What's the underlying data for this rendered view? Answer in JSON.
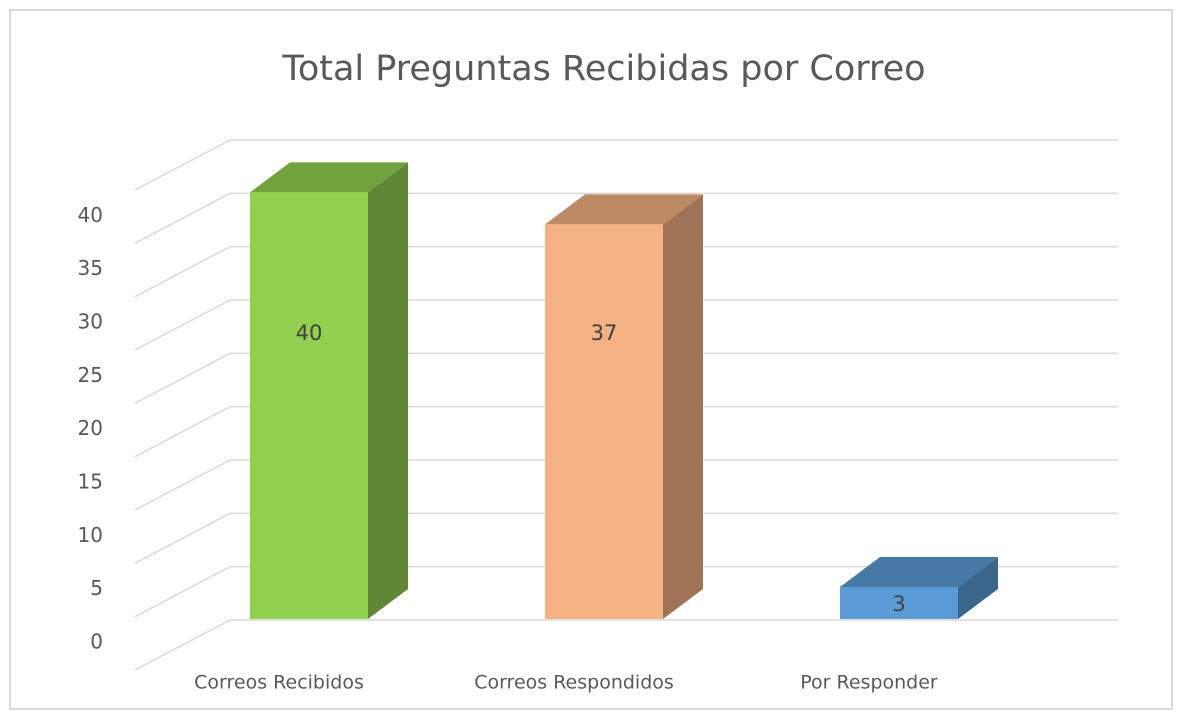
{
  "chart_data": {
    "type": "bar3d",
    "title": "Total Preguntas Recibidas por Correo",
    "categories": [
      "Correos Recibidos",
      "Correos Respondidos",
      "Por Responder"
    ],
    "values": [
      40,
      37,
      3
    ],
    "colors": [
      "#92d050",
      "#f4b183",
      "#5b9bd5"
    ],
    "ylim": [
      0,
      45
    ],
    "yticks": [
      0,
      5,
      10,
      15,
      20,
      25,
      30,
      35,
      40
    ],
    "grid": true
  }
}
